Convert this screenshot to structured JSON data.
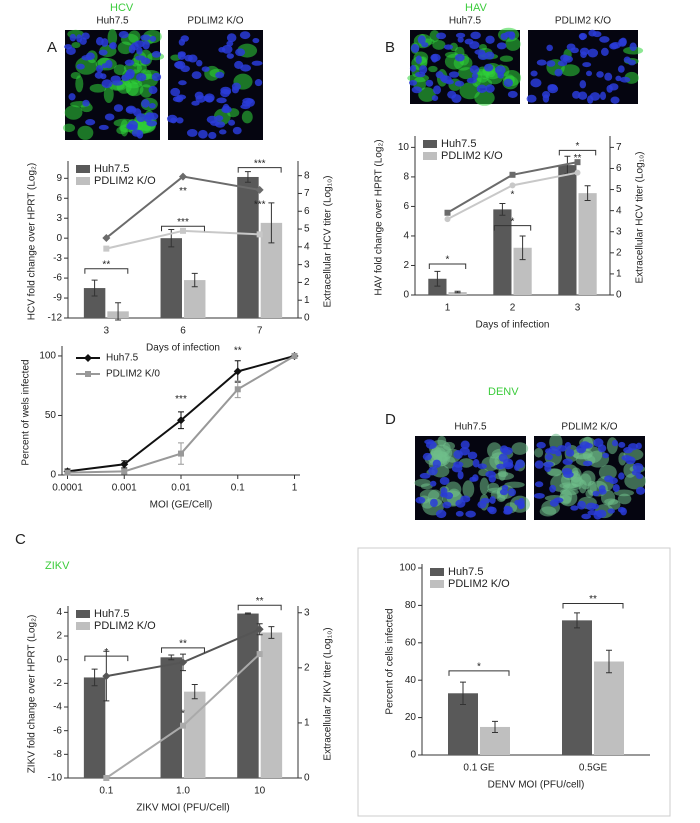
{
  "chart_data": [
    {
      "type": "bar",
      "panel": "A",
      "title": "HCV",
      "image_labels": [
        "Huh7.5",
        "PDLIM2 K/O"
      ],
      "categories": [
        "3",
        "6",
        "7"
      ],
      "x_label": "Days of infection",
      "y_label": "HCV fold change over HPRT (Log₂)",
      "y2_label": "Extracellular HCV titer (Log₁₀)",
      "ylim": [
        -12,
        11
      ],
      "yticks": [
        -12,
        -9,
        -6,
        -3,
        0,
        3,
        6,
        9
      ],
      "y2lim": [
        0,
        8.6
      ],
      "y2ticks": [
        0,
        1,
        2,
        3,
        4,
        5,
        6,
        7,
        8
      ],
      "series": [
        {
          "name": "Huh7.5",
          "color": "#595959",
          "values": [
            -7.5,
            0,
            9.2
          ],
          "errors": [
            1.2,
            1.3,
            0.8
          ]
        },
        {
          "name": "PDLIM2 K/O",
          "color": "#bfbfbf",
          "values": [
            -11,
            -6.3,
            2.3
          ],
          "errors": [
            1.3,
            1.0,
            3.0
          ]
        },
        {
          "type": "line",
          "axis": "y2",
          "color": "#6b6b6b",
          "marker": "diamond",
          "values": [
            4.5,
            7.95,
            7.2
          ]
        },
        {
          "type": "line",
          "axis": "y2",
          "color": "#c8c8c8",
          "marker": "square",
          "values": [
            3.9,
            4.9,
            4.7
          ]
        }
      ],
      "annotations": [
        "**",
        "**",
        "***",
        "***",
        "***"
      ],
      "legend": "top-left"
    },
    {
      "type": "line",
      "xscale": "log",
      "x": [
        0.0001,
        0.001,
        0.01,
        0.1,
        1
      ],
      "xlim": [
        8e-05,
        1.25
      ],
      "xticks": [
        0.0001,
        0.001,
        0.01,
        0.1,
        1
      ],
      "ylim": [
        0,
        105
      ],
      "yticks": [
        0,
        50,
        100
      ],
      "x_label": "MOI (GE/Cell)",
      "y_label": "Percent of wels infected",
      "series": [
        {
          "name": "Huh7.5",
          "color": "#111111",
          "marker": "diamond",
          "values": [
            3,
            9,
            46,
            87,
            100
          ],
          "errors": [
            2,
            3,
            7,
            9,
            1
          ]
        },
        {
          "name": "PDLIM2 K/0",
          "color": "#999999",
          "marker": "square",
          "values": [
            2,
            3,
            18,
            72,
            100
          ],
          "errors": [
            1,
            2,
            9,
            7,
            1
          ]
        }
      ],
      "annotations": [
        "***",
        "**"
      ],
      "legend": "top-left"
    },
    {
      "type": "bar",
      "panel": "B",
      "title": "HAV",
      "image_labels": [
        "Huh7.5",
        "PDLIM2 K/O"
      ],
      "categories": [
        "1",
        "2",
        "3"
      ],
      "x_label": "Days of infection",
      "y_label": "HAV fold change over HPRT (Log₂)",
      "y2_label": "Extracellular HCV titer (Log₁₀)",
      "ylim": [
        0,
        10.5
      ],
      "yticks": [
        0,
        2,
        4,
        6,
        8,
        10
      ],
      "y2lim": [
        0,
        7.35
      ],
      "y2ticks": [
        0,
        1,
        2,
        3,
        4,
        5,
        6,
        7
      ],
      "series": [
        {
          "name": "Huh7.5",
          "color": "#595959",
          "values": [
            1.1,
            5.8,
            8.8
          ],
          "errors": [
            0.5,
            0.4,
            0.6
          ]
        },
        {
          "name": "PDLIM2 K/O",
          "color": "#bfbfbf",
          "values": [
            0.2,
            3.2,
            6.9
          ],
          "errors": [
            0.05,
            0.8,
            0.5
          ]
        },
        {
          "type": "line",
          "axis": "y2",
          "color": "#6b6b6b",
          "marker": "square",
          "values": [
            3.9,
            5.7,
            6.3
          ]
        },
        {
          "type": "line",
          "axis": "y2",
          "color": "#c8c8c8",
          "marker": "circle",
          "values": [
            3.6,
            5.2,
            5.8
          ]
        }
      ],
      "annotations": [
        "*",
        "*",
        "*",
        "*",
        "**"
      ],
      "legend": "top-left"
    },
    {
      "type": "bar",
      "panel": "C",
      "title": "ZIKV",
      "categories": [
        "0.1",
        "1.0",
        "10"
      ],
      "x_label": "ZIKV MOI (PFU/Cell)",
      "y_label": "ZIKV fold change over HPRT (Log₂)",
      "y2_label": "Extracellular ZIKV titer (Log₁₀)",
      "ylim": [
        -10,
        4.2
      ],
      "yticks": [
        -10,
        -8,
        -6,
        -4,
        -2,
        0,
        2,
        4
      ],
      "y2lim": [
        0,
        3.05
      ],
      "y2ticks": [
        0,
        1,
        2,
        3
      ],
      "series": [
        {
          "name": "Huh7.5",
          "color": "#595959",
          "values": [
            -1.5,
            0.2,
            3.9
          ],
          "errors": [
            0.7,
            0.2,
            0.05
          ]
        },
        {
          "name": "PDLIM2 K/O",
          "color": "#bfbfbf",
          "values": [
            -10,
            -2.7,
            2.3
          ],
          "errors": [
            0,
            0.6,
            0.5
          ]
        },
        {
          "type": "line",
          "axis": "y2",
          "color": "#555555",
          "marker": "diamond",
          "values": [
            1.85,
            2.1,
            2.7
          ],
          "errors": [
            0.45,
            0.15,
            0.1
          ]
        },
        {
          "type": "line",
          "axis": "y2",
          "color": "#aaaaaa",
          "marker": "square",
          "values": [
            0,
            0.95,
            2.25
          ]
        }
      ],
      "annotations": [
        "*",
        "**",
        "*",
        "**"
      ],
      "legend": "top-left"
    },
    {
      "type": "bar",
      "panel": "D",
      "title": "DENV",
      "image_labels": [
        "Huh7.5",
        "PDLIM2 K/O"
      ],
      "categories": [
        "0.1 GE",
        "0.5GE"
      ],
      "x_label": "DENV MOI (PFU/cell)",
      "y_label": "Percent of cells infected",
      "ylim": [
        0,
        100
      ],
      "yticks": [
        0,
        20,
        40,
        60,
        80,
        100
      ],
      "series": [
        {
          "name": "Huh7.5",
          "color": "#595959",
          "values": [
            33,
            72
          ],
          "errors": [
            6,
            4
          ]
        },
        {
          "name": "PDLIM2 K/O",
          "color": "#bfbfbf",
          "values": [
            15,
            50
          ],
          "errors": [
            3,
            6
          ]
        }
      ],
      "annotations": [
        "*",
        "**"
      ],
      "legend": "top-left"
    }
  ]
}
